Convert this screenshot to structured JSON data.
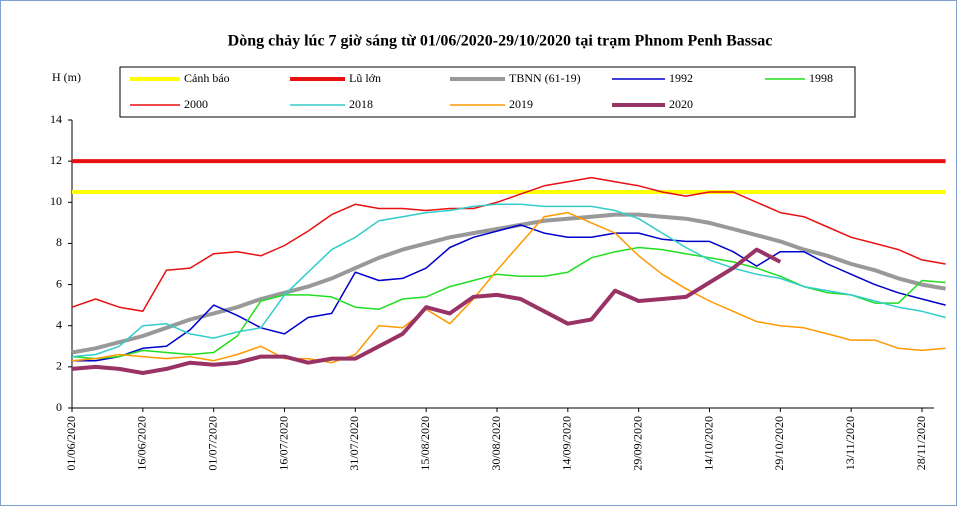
{
  "chart_data": {
    "type": "line",
    "title": "Dòng chảy lúc 7 giờ sáng từ 01/06/2020-29/10/2020 tại trạm Phnom Penh Bassac",
    "y_label": "H (m)",
    "categories": [
      "01/06/2020",
      null,
      null,
      "16/06/2020",
      null,
      null,
      "01/07/2020",
      null,
      null,
      "16/07/2020",
      null,
      null,
      "31/07/2020",
      null,
      null,
      "15/08/2020",
      null,
      null,
      "30/08/2020",
      null,
      null,
      "14/09/2020",
      null,
      null,
      "29/09/2020",
      null,
      null,
      "14/10/2020",
      null,
      null,
      "29/10/2020",
      null,
      null,
      "13/11/2020",
      null,
      null,
      "28/11/2020",
      null
    ],
    "ylim": [
      0,
      14
    ],
    "yticks": [
      0,
      2,
      4,
      6,
      8,
      10,
      12,
      14
    ],
    "series": [
      {
        "name": "Cảnh báo",
        "color": "#ffff00",
        "width": 4,
        "values": [
          10.5,
          10.5,
          10.5,
          10.5,
          10.5,
          10.5,
          10.5,
          10.5,
          10.5,
          10.5,
          10.5,
          10.5,
          10.5,
          10.5,
          10.5,
          10.5,
          10.5,
          10.5,
          10.5,
          10.5,
          10.5,
          10.5,
          10.5,
          10.5,
          10.5,
          10.5,
          10.5,
          10.5,
          10.5,
          10.5,
          10.5,
          10.5,
          10.5,
          10.5,
          10.5,
          10.5,
          10.5,
          10.5
        ]
      },
      {
        "name": "Lũ lớn",
        "color": "#e81010",
        "width": 4,
        "values": [
          12,
          12,
          12,
          12,
          12,
          12,
          12,
          12,
          12,
          12,
          12,
          12,
          12,
          12,
          12,
          12,
          12,
          12,
          12,
          12,
          12,
          12,
          12,
          12,
          12,
          12,
          12,
          12,
          12,
          12,
          12,
          12,
          12,
          12,
          12,
          12,
          12,
          12
        ]
      },
      {
        "name": "TBNN (61-19)",
        "color": "#999999",
        "width": 4,
        "values": [
          2.7,
          2.9,
          3.2,
          3.5,
          3.9,
          4.3,
          4.6,
          4.9,
          5.3,
          5.6,
          5.9,
          6.3,
          6.8,
          7.3,
          7.7,
          8.0,
          8.3,
          8.5,
          8.7,
          8.9,
          9.1,
          9.2,
          9.3,
          9.4,
          9.4,
          9.3,
          9.2,
          9.0,
          8.7,
          8.4,
          8.1,
          7.7,
          7.4,
          7.0,
          6.7,
          6.3,
          6.0,
          5.8
        ]
      },
      {
        "name": "1992",
        "color": "#0000cc",
        "width": 1.5,
        "values": [
          2.3,
          2.3,
          2.5,
          2.9,
          3.0,
          3.8,
          5.0,
          4.5,
          3.9,
          3.6,
          4.4,
          4.6,
          6.6,
          6.2,
          6.3,
          6.8,
          7.8,
          8.3,
          8.6,
          8.9,
          8.5,
          8.3,
          8.3,
          8.5,
          8.5,
          8.2,
          8.1,
          8.1,
          7.6,
          6.9,
          7.6,
          7.6,
          7.0,
          6.5,
          6.0,
          5.6,
          5.3,
          5.0
        ]
      },
      {
        "name": "1998",
        "color": "#22dd22",
        "width": 1.5,
        "values": [
          2.5,
          2.4,
          2.5,
          2.8,
          2.7,
          2.6,
          2.7,
          3.5,
          5.2,
          5.5,
          5.5,
          5.4,
          4.9,
          4.8,
          5.3,
          5.4,
          5.9,
          6.2,
          6.5,
          6.4,
          6.4,
          6.6,
          7.3,
          7.6,
          7.8,
          7.7,
          7.5,
          7.3,
          7.1,
          6.8,
          6.4,
          5.9,
          5.6,
          5.5,
          5.1,
          5.1,
          6.2,
          6.1
        ]
      },
      {
        "name": "2000",
        "color": "#e81010",
        "width": 1.5,
        "values": [
          4.9,
          5.3,
          4.9,
          4.7,
          6.7,
          6.8,
          7.5,
          7.6,
          7.4,
          7.9,
          8.6,
          9.4,
          9.9,
          9.7,
          9.7,
          9.6,
          9.7,
          9.7,
          10.0,
          10.4,
          10.8,
          11.0,
          11.2,
          11.0,
          10.8,
          10.5,
          10.3,
          10.5,
          10.5,
          10.0,
          9.5,
          9.3,
          8.8,
          8.3,
          8.0,
          7.7,
          7.2,
          7.0
        ]
      },
      {
        "name": "2018",
        "color": "#33cccc",
        "width": 1.5,
        "values": [
          2.5,
          2.6,
          3.0,
          4.0,
          4.1,
          3.6,
          3.4,
          3.7,
          3.9,
          5.5,
          6.6,
          7.7,
          8.3,
          9.1,
          9.3,
          9.5,
          9.6,
          9.8,
          9.9,
          9.9,
          9.8,
          9.8,
          9.8,
          9.6,
          9.2,
          8.5,
          7.8,
          7.2,
          6.8,
          6.5,
          6.3,
          5.9,
          5.7,
          5.5,
          5.2,
          4.9,
          4.7,
          4.4
        ]
      },
      {
        "name": "2019",
        "color": "#ff9900",
        "width": 1.5,
        "values": [
          2.3,
          2.4,
          2.6,
          2.5,
          2.4,
          2.5,
          2.3,
          2.6,
          3.0,
          2.4,
          2.4,
          2.2,
          2.6,
          4.0,
          3.9,
          4.8,
          4.1,
          5.3,
          6.7,
          8.0,
          9.3,
          9.5,
          9.0,
          8.5,
          7.4,
          6.5,
          5.8,
          5.2,
          4.7,
          4.2,
          4.0,
          3.9,
          3.6,
          3.3,
          3.3,
          2.9,
          2.8,
          2.9
        ]
      },
      {
        "name": "2020",
        "color": "#993366",
        "width": 4,
        "values": [
          1.9,
          2.0,
          1.9,
          1.7,
          1.9,
          2.2,
          2.1,
          2.2,
          2.5,
          2.5,
          2.2,
          2.4,
          2.4,
          3.0,
          3.6,
          4.9,
          4.6,
          5.4,
          5.5,
          5.3,
          4.7,
          4.1,
          4.3,
          5.7,
          5.2,
          5.3,
          5.4,
          6.1,
          6.8,
          7.7,
          7.1,
          null,
          null,
          null,
          null,
          null,
          null,
          null
        ]
      }
    ]
  }
}
